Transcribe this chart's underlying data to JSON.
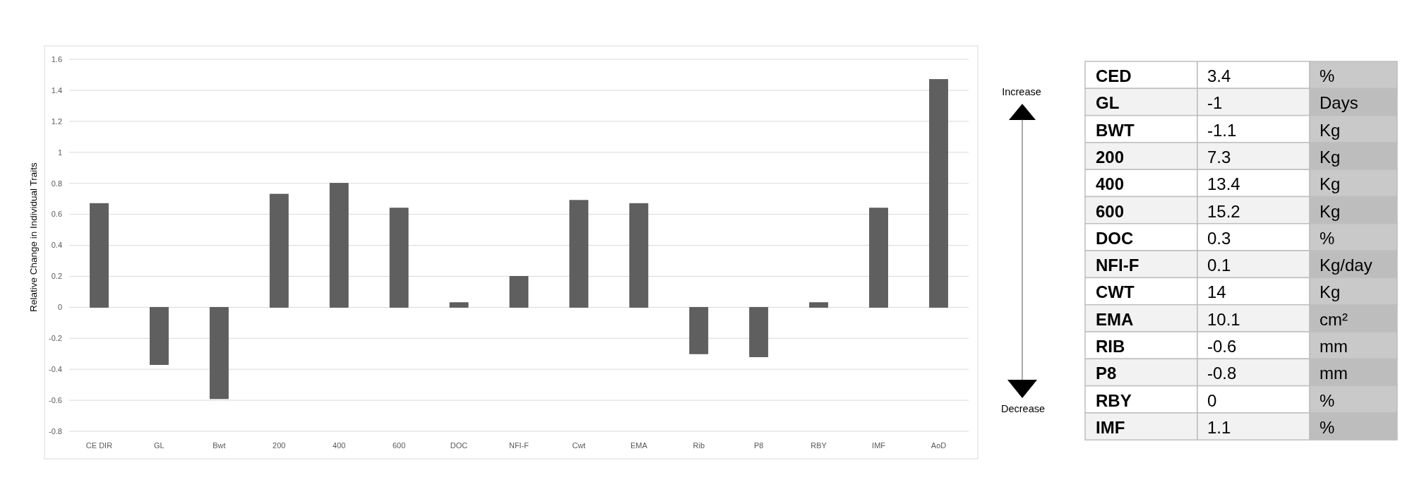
{
  "chart_data": [
    {
      "type": "bar",
      "ylabel": "Relative Change in Individual Traits",
      "categories": [
        "CE DIR",
        "GL",
        "Bwt",
        "200",
        "400",
        "600",
        "DOC",
        "NFI-F",
        "Cwt",
        "EMA",
        "Rib",
        "P8",
        "RBY",
        "IMF",
        "AoD"
      ],
      "values": [
        0.67,
        -0.37,
        -0.59,
        0.73,
        0.8,
        0.64,
        0.03,
        0.2,
        0.69,
        0.67,
        -0.3,
        -0.32,
        0.03,
        0.64,
        1.47
      ],
      "color": "#5f5f5f",
      "ylim": [
        -0.8,
        1.6
      ],
      "yticks": [
        -0.8,
        -0.6,
        -0.4,
        -0.2,
        0,
        0.2,
        0.4,
        0.6,
        0.8,
        1,
        1.2,
        1.4,
        1.6
      ],
      "grid": true,
      "annotations": [
        "Increase",
        "Decrease"
      ]
    },
    {
      "type": "other",
      "categories": [
        "CED",
        "GL",
        "BWT",
        "200",
        "400",
        "600",
        "DOC",
        "NFI-F",
        "CWT",
        "EMA",
        "RIB",
        "P8",
        "RBY",
        "IMF"
      ],
      "values": [
        3.4,
        -1,
        -1.1,
        7.3,
        13.4,
        15.2,
        0.3,
        0.1,
        14,
        10.1,
        -0.6,
        -0.8,
        0,
        1.1
      ],
      "data_labels": true,
      "annotations": [
        "%",
        "Days",
        "Kg",
        "Kg",
        "Kg",
        "Kg",
        "%",
        "Kg/day",
        "Kg",
        "cm²",
        "mm",
        "mm",
        "%",
        "%"
      ]
    }
  ]
}
